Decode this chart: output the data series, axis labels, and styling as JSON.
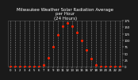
{
  "title": "Milwaukee Weather Solar Radiation Average\nper Hour\n(24 Hours)",
  "x": [
    0,
    1,
    2,
    3,
    4,
    5,
    6,
    7,
    8,
    9,
    10,
    11,
    12,
    13,
    14,
    15,
    16,
    17,
    18,
    19,
    20,
    21,
    22,
    23
  ],
  "y": [
    0,
    0,
    0,
    0,
    0,
    0,
    1,
    8,
    35,
    75,
    120,
    155,
    165,
    155,
    130,
    100,
    65,
    30,
    8,
    1,
    0,
    0,
    0,
    0
  ],
  "dot_color": "#ff2200",
  "plot_bg_color": "#1a1a1a",
  "fig_bg_color": "#1a1a1a",
  "title_color": "#ffffff",
  "grid_color": "#ffffff",
  "tick_color": "#ffffff",
  "spine_color": "#555555",
  "ylim": [
    0,
    175
  ],
  "xlim": [
    -0.5,
    23.5
  ],
  "yticks": [
    0,
    25,
    50,
    75,
    100,
    125,
    150,
    175
  ],
  "ytick_labels": [
    "0",
    "25",
    "50",
    "75",
    "100",
    "125",
    "150",
    "175"
  ],
  "xticks": [
    0,
    1,
    2,
    3,
    4,
    5,
    6,
    7,
    8,
    9,
    10,
    11,
    12,
    13,
    14,
    15,
    16,
    17,
    18,
    19,
    20,
    21,
    22,
    23
  ],
  "xtick_labels": [
    "0",
    "1",
    "2",
    "3",
    "4",
    "5",
    "6",
    "7",
    "8",
    "9",
    "10",
    "11",
    "12",
    "13",
    "14",
    "15",
    "16",
    "17",
    "18",
    "19",
    "20",
    "21",
    "22",
    "23"
  ],
  "title_fontsize": 4.0,
  "tick_fontsize": 2.8,
  "dot_size": 1.5,
  "grid_linewidth": 0.4,
  "yaxis_right": true
}
